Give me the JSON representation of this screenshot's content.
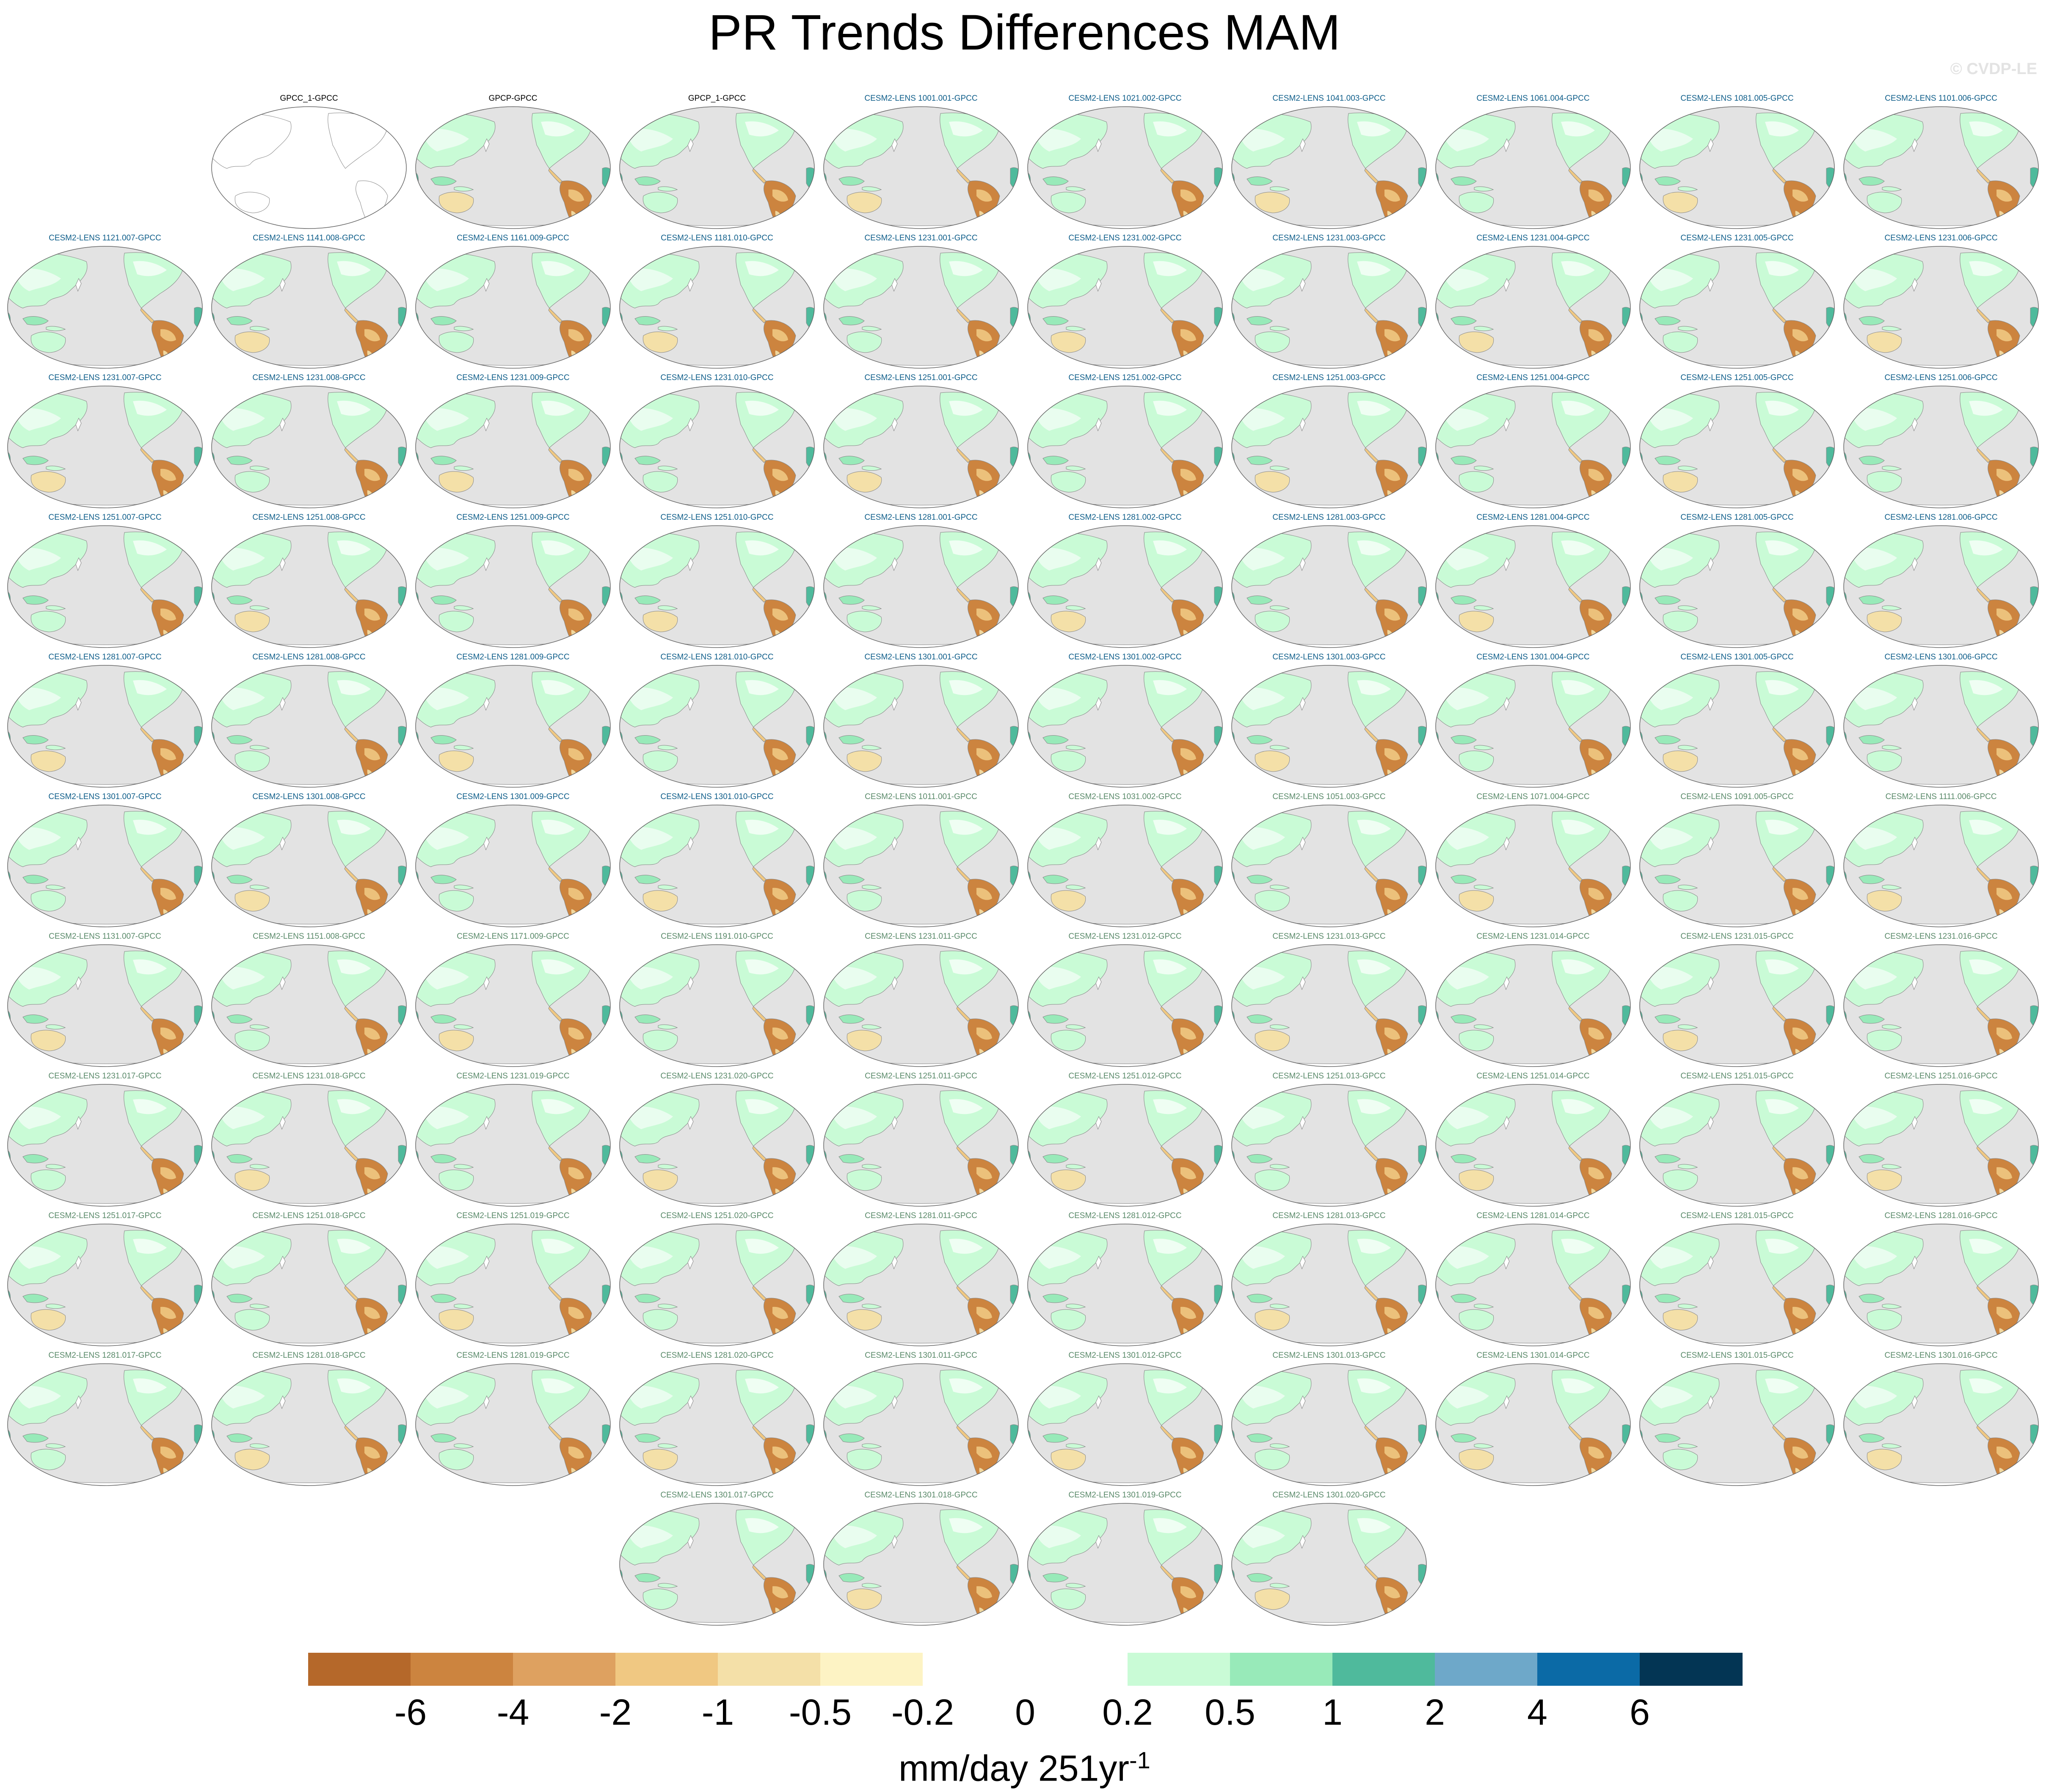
{
  "title": "PR Trends Differences MAM",
  "watermark": "© CVDP-LE",
  "panel_label_colors": {
    "observation": "#000000",
    "cesm_group_1": "#0f5e8a",
    "cesm_group_2": "#5a8a6a"
  },
  "map_colors": {
    "ocean": "#e3e3e3",
    "coast": "#888888"
  },
  "panels": [
    [
      "",
      "GPCC_1-GPCC",
      "GPCP-GPCC",
      "GPCP_1-GPCC",
      "CESM2-LENS 1001.001-GPCC",
      "CESM2-LENS 1021.002-GPCC",
      "CESM2-LENS 1041.003-GPCC",
      "CESM2-LENS 1061.004-GPCC",
      "CESM2-LENS 1081.005-GPCC",
      "CESM2-LENS 1101.006-GPCC"
    ],
    [
      "CESM2-LENS 1121.007-GPCC",
      "CESM2-LENS 1141.008-GPCC",
      "CESM2-LENS 1161.009-GPCC",
      "CESM2-LENS 1181.010-GPCC",
      "CESM2-LENS 1231.001-GPCC",
      "CESM2-LENS 1231.002-GPCC",
      "CESM2-LENS 1231.003-GPCC",
      "CESM2-LENS 1231.004-GPCC",
      "CESM2-LENS 1231.005-GPCC",
      "CESM2-LENS 1231.006-GPCC"
    ],
    [
      "CESM2-LENS 1231.007-GPCC",
      "CESM2-LENS 1231.008-GPCC",
      "CESM2-LENS 1231.009-GPCC",
      "CESM2-LENS 1231.010-GPCC",
      "CESM2-LENS 1251.001-GPCC",
      "CESM2-LENS 1251.002-GPCC",
      "CESM2-LENS 1251.003-GPCC",
      "CESM2-LENS 1251.004-GPCC",
      "CESM2-LENS 1251.005-GPCC",
      "CESM2-LENS 1251.006-GPCC"
    ],
    [
      "CESM2-LENS 1251.007-GPCC",
      "CESM2-LENS 1251.008-GPCC",
      "CESM2-LENS 1251.009-GPCC",
      "CESM2-LENS 1251.010-GPCC",
      "CESM2-LENS 1281.001-GPCC",
      "CESM2-LENS 1281.002-GPCC",
      "CESM2-LENS 1281.003-GPCC",
      "CESM2-LENS 1281.004-GPCC",
      "CESM2-LENS 1281.005-GPCC",
      "CESM2-LENS 1281.006-GPCC"
    ],
    [
      "CESM2-LENS 1281.007-GPCC",
      "CESM2-LENS 1281.008-GPCC",
      "CESM2-LENS 1281.009-GPCC",
      "CESM2-LENS 1281.010-GPCC",
      "CESM2-LENS 1301.001-GPCC",
      "CESM2-LENS 1301.002-GPCC",
      "CESM2-LENS 1301.003-GPCC",
      "CESM2-LENS 1301.004-GPCC",
      "CESM2-LENS 1301.005-GPCC",
      "CESM2-LENS 1301.006-GPCC"
    ],
    [
      "CESM2-LENS 1301.007-GPCC",
      "CESM2-LENS 1301.008-GPCC",
      "CESM2-LENS 1301.009-GPCC",
      "CESM2-LENS 1301.010-GPCC",
      "CESM2-LENS 1011.001-GPCC",
      "CESM2-LENS 1031.002-GPCC",
      "CESM2-LENS 1051.003-GPCC",
      "CESM2-LENS 1071.004-GPCC",
      "CESM2-LENS 1091.005-GPCC",
      "CESM2-LENS 1111.006-GPCC"
    ],
    [
      "CESM2-LENS 1131.007-GPCC",
      "CESM2-LENS 1151.008-GPCC",
      "CESM2-LENS 1171.009-GPCC",
      "CESM2-LENS 1191.010-GPCC",
      "CESM2-LENS 1231.011-GPCC",
      "CESM2-LENS 1231.012-GPCC",
      "CESM2-LENS 1231.013-GPCC",
      "CESM2-LENS 1231.014-GPCC",
      "CESM2-LENS 1231.015-GPCC",
      "CESM2-LENS 1231.016-GPCC"
    ],
    [
      "CESM2-LENS 1231.017-GPCC",
      "CESM2-LENS 1231.018-GPCC",
      "CESM2-LENS 1231.019-GPCC",
      "CESM2-LENS 1231.020-GPCC",
      "CESM2-LENS 1251.011-GPCC",
      "CESM2-LENS 1251.012-GPCC",
      "CESM2-LENS 1251.013-GPCC",
      "CESM2-LENS 1251.014-GPCC",
      "CESM2-LENS 1251.015-GPCC",
      "CESM2-LENS 1251.016-GPCC"
    ],
    [
      "CESM2-LENS 1251.017-GPCC",
      "CESM2-LENS 1251.018-GPCC",
      "CESM2-LENS 1251.019-GPCC",
      "CESM2-LENS 1251.020-GPCC",
      "CESM2-LENS 1281.011-GPCC",
      "CESM2-LENS 1281.012-GPCC",
      "CESM2-LENS 1281.013-GPCC",
      "CESM2-LENS 1281.014-GPCC",
      "CESM2-LENS 1281.015-GPCC",
      "CESM2-LENS 1281.016-GPCC"
    ],
    [
      "CESM2-LENS 1281.017-GPCC",
      "CESM2-LENS 1281.018-GPCC",
      "CESM2-LENS 1281.019-GPCC",
      "CESM2-LENS 1281.020-GPCC",
      "CESM2-LENS 1301.011-GPCC",
      "CESM2-LENS 1301.012-GPCC",
      "CESM2-LENS 1301.013-GPCC",
      "CESM2-LENS 1301.014-GPCC",
      "CESM2-LENS 1301.015-GPCC",
      "CESM2-LENS 1301.016-GPCC"
    ],
    [
      "",
      "",
      "",
      "CESM2-LENS 1301.017-GPCC",
      "CESM2-LENS 1301.018-GPCC",
      "CESM2-LENS 1301.019-GPCC",
      "CESM2-LENS 1301.020-GPCC",
      "",
      "",
      ""
    ]
  ],
  "colorbar": {
    "colors": [
      "#b5682a",
      "#cc843f",
      "#dea160",
      "#f0c882",
      "#f4e0a8",
      "#fdf3c4",
      "#ffffff",
      "#ffffff",
      "#c9fbd6",
      "#98eab9",
      "#4fba9c",
      "#6ea8c9",
      "#0b6aa6",
      "#033554"
    ],
    "labels": [
      "-6",
      "-4",
      "-2",
      "-1",
      "-0.5",
      "-0.2",
      "0",
      "0.2",
      "0.5",
      "1",
      "2",
      "4",
      "6"
    ]
  },
  "units": {
    "text": "mm/day 251yr",
    "superscript": "-1"
  }
}
